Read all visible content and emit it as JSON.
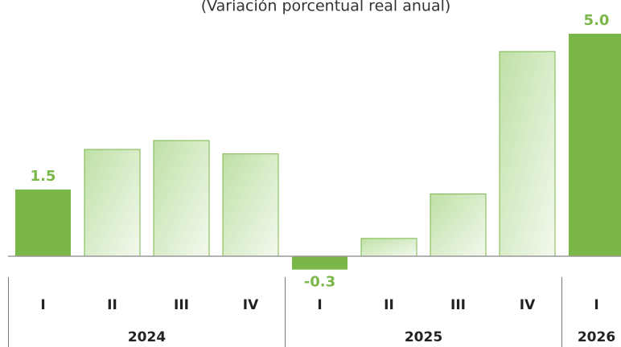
{
  "chart_data": {
    "type": "bar",
    "subtitle": "(Variación porcentual real anual)",
    "categories": [
      "I",
      "II",
      "III",
      "IV",
      "I",
      "II",
      "III",
      "IV",
      "I"
    ],
    "groups": [
      "2024",
      "2024",
      "2024",
      "2024",
      "2025",
      "2025",
      "2025",
      "2025",
      "2026"
    ],
    "values": [
      1.5,
      2.4,
      2.6,
      2.3,
      -0.3,
      0.4,
      1.4,
      4.6,
      5.0
    ],
    "value_labels": [
      "1.5",
      null,
      null,
      null,
      "-0.3",
      null,
      null,
      null,
      "5.0"
    ],
    "color": "#cfe8bd",
    "highlight_color": "#7ab648"
  }
}
